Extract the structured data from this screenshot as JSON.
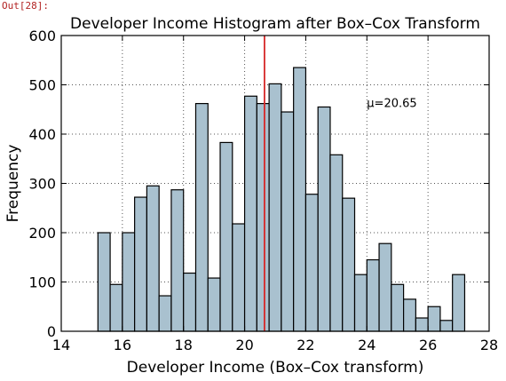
{
  "cell": {
    "out_label": "Out[28]:"
  },
  "colors": {
    "bar_fill": "#a9c1cf",
    "bar_edge": "#000000",
    "mean_line": "#d62728",
    "grid": "#555555"
  },
  "chart_data": {
    "type": "bar",
    "title": "Developer Income Histogram after Box–Cox Transform",
    "xlabel": "Developer Income (Box–Cox transform)",
    "ylabel": "Frequency",
    "xlim": [
      14,
      28
    ],
    "ylim": [
      0,
      600
    ],
    "xticks": [
      14,
      16,
      18,
      20,
      22,
      24,
      26,
      28
    ],
    "yticks": [
      0,
      100,
      200,
      300,
      400,
      500,
      600
    ],
    "grid": true,
    "bins": [
      {
        "x0": 15.2,
        "x1": 15.6,
        "value": 200
      },
      {
        "x0": 15.6,
        "x1": 16.0,
        "value": 95
      },
      {
        "x0": 16.0,
        "x1": 16.4,
        "value": 200
      },
      {
        "x0": 16.4,
        "x1": 16.8,
        "value": 272
      },
      {
        "x0": 16.8,
        "x1": 17.2,
        "value": 295
      },
      {
        "x0": 17.2,
        "x1": 17.6,
        "value": 72
      },
      {
        "x0": 17.6,
        "x1": 18.0,
        "value": 287
      },
      {
        "x0": 18.0,
        "x1": 18.4,
        "value": 118
      },
      {
        "x0": 18.4,
        "x1": 18.8,
        "value": 462
      },
      {
        "x0": 18.8,
        "x1": 19.2,
        "value": 108
      },
      {
        "x0": 19.2,
        "x1": 19.6,
        "value": 383
      },
      {
        "x0": 19.6,
        "x1": 20.0,
        "value": 218
      },
      {
        "x0": 20.0,
        "x1": 20.4,
        "value": 477
      },
      {
        "x0": 20.4,
        "x1": 20.8,
        "value": 462
      },
      {
        "x0": 20.8,
        "x1": 21.2,
        "value": 502
      },
      {
        "x0": 21.2,
        "x1": 21.6,
        "value": 445
      },
      {
        "x0": 21.6,
        "x1": 22.0,
        "value": 535
      },
      {
        "x0": 22.0,
        "x1": 22.4,
        "value": 278
      },
      {
        "x0": 22.4,
        "x1": 22.8,
        "value": 455
      },
      {
        "x0": 22.8,
        "x1": 23.2,
        "value": 358
      },
      {
        "x0": 23.2,
        "x1": 23.6,
        "value": 270
      },
      {
        "x0": 23.6,
        "x1": 24.0,
        "value": 115
      },
      {
        "x0": 24.0,
        "x1": 24.4,
        "value": 145
      },
      {
        "x0": 24.4,
        "x1": 24.8,
        "value": 178
      },
      {
        "x0": 24.8,
        "x1": 25.2,
        "value": 95
      },
      {
        "x0": 25.2,
        "x1": 25.6,
        "value": 65
      },
      {
        "x0": 25.6,
        "x1": 26.0,
        "value": 27
      },
      {
        "x0": 26.0,
        "x1": 26.4,
        "value": 50
      },
      {
        "x0": 26.4,
        "x1": 26.8,
        "value": 22
      },
      {
        "x0": 26.8,
        "x1": 27.2,
        "value": 115
      }
    ],
    "mean_line": {
      "x": 20.65,
      "label": "μ=20.65"
    }
  }
}
